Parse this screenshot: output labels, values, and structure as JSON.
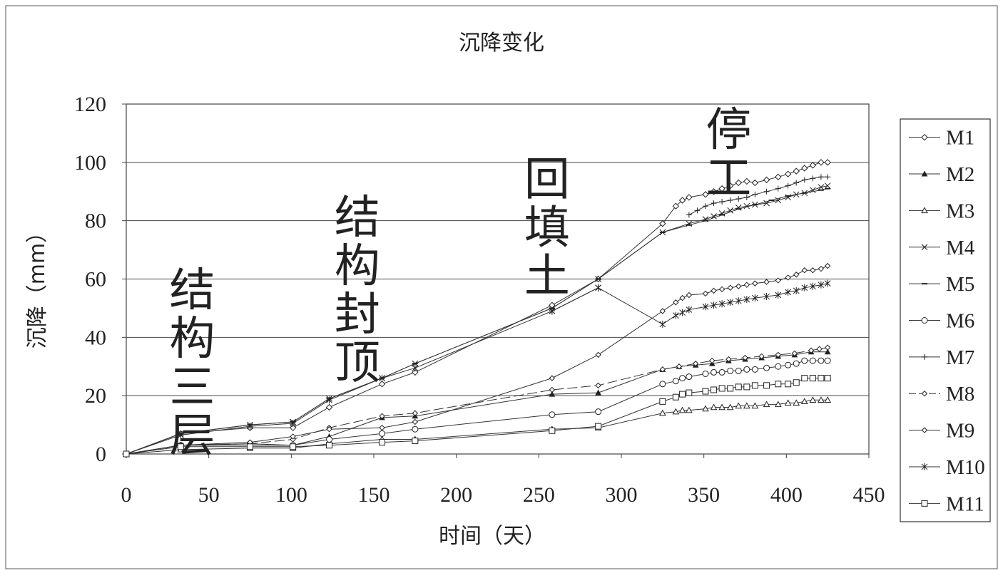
{
  "chart_data": {
    "type": "line",
    "title": "沉降变化",
    "xlabel": "时间（天）",
    "ylabel": "沉降（mm）",
    "xlim": [
      0,
      450
    ],
    "ylim": [
      0,
      120
    ],
    "xticks": [
      "0",
      "50",
      "100",
      "150",
      "200",
      "250",
      "300",
      "350",
      "400",
      "450"
    ],
    "yticks": [
      "0",
      "20",
      "40",
      "60",
      "80",
      "100",
      "120"
    ],
    "grid": "horizontal",
    "legend_position": "right",
    "annotations": [
      {
        "text": "结构三层",
        "at": [
          40,
          65
        ]
      },
      {
        "text": "结构封顶",
        "at": [
          140,
          90
        ]
      },
      {
        "text": "回填土",
        "at": [
          255,
          103
        ]
      },
      {
        "text": "停工",
        "at": [
          365,
          120
        ]
      }
    ],
    "series": [
      {
        "name": "M1",
        "marker": "diamond",
        "dash": "solid",
        "x": [
          0,
          33,
          75,
          101,
          123,
          155,
          175,
          258,
          286,
          325,
          333,
          337,
          341,
          351,
          356,
          361,
          366,
          371,
          376,
          381,
          388,
          395,
          401,
          406,
          411,
          416,
          421,
          425
        ],
        "y": [
          0,
          7,
          9,
          9,
          16,
          24,
          28,
          51,
          60,
          79,
          85,
          87,
          88,
          89,
          90,
          91,
          92,
          93,
          93.5,
          93,
          94,
          95,
          96,
          97,
          98,
          99,
          100,
          100
        ]
      },
      {
        "name": "M2",
        "marker": "triangle-filled",
        "dash": "solid",
        "x": [
          0,
          33,
          75,
          101,
          123,
          155,
          175,
          258,
          286,
          325,
          335,
          345,
          355,
          365,
          375,
          385,
          395,
          405,
          415,
          425
        ],
        "y": [
          0,
          3,
          3,
          3,
          6,
          12.5,
          13,
          20.5,
          21,
          29,
          30,
          30.5,
          31,
          32,
          32.5,
          33,
          33.5,
          34,
          35,
          35
        ]
      },
      {
        "name": "M3",
        "marker": "triangle",
        "dash": "solid",
        "x": [
          0,
          33,
          75,
          101,
          123,
          155,
          175,
          258,
          286,
          325,
          333,
          337,
          341,
          351,
          356,
          361,
          366,
          371,
          376,
          381,
          388,
          395,
          401,
          406,
          411,
          416,
          421,
          425
        ],
        "y": [
          0,
          1.5,
          2,
          2,
          3.5,
          5,
          5,
          8.5,
          9,
          14,
          14.5,
          15,
          15,
          15.5,
          16,
          16,
          16,
          16.5,
          16.5,
          16.5,
          17,
          17,
          17.5,
          17.5,
          18,
          18.5,
          18.5,
          18.5
        ]
      },
      {
        "name": "M4",
        "marker": "x",
        "dash": "solid",
        "x": [
          0,
          33,
          75,
          101,
          123,
          155,
          175,
          258,
          286,
          325,
          341,
          351,
          356,
          361,
          366,
          371,
          376,
          381,
          388,
          395,
          401,
          406,
          411,
          416,
          421,
          425
        ],
        "y": [
          0,
          7,
          10,
          11,
          19,
          26,
          31,
          50,
          60,
          76,
          79,
          80.5,
          81.5,
          82.5,
          83.5,
          84.5,
          85,
          85.5,
          86,
          87,
          88,
          89,
          89.5,
          90.5,
          91.5,
          92
        ]
      },
      {
        "name": "M5",
        "marker": "dash",
        "dash": "solid",
        "x": [
          0,
          33,
          75,
          101,
          123,
          155,
          175,
          258,
          286,
          325,
          341,
          351,
          361,
          371,
          381,
          391,
          401,
          411,
          421,
          425
        ],
        "y": [
          0,
          7,
          10,
          11,
          19,
          26,
          31,
          50,
          60,
          76,
          78.5,
          80,
          82,
          84,
          85.5,
          87,
          88.5,
          89.5,
          90.5,
          91
        ]
      },
      {
        "name": "M6",
        "marker": "circle",
        "dash": "solid",
        "x": [
          0,
          33,
          75,
          101,
          123,
          155,
          175,
          258,
          286,
          325,
          333,
          337,
          341,
          351,
          356,
          361,
          366,
          371,
          376,
          381,
          388,
          395,
          401,
          406,
          411,
          416,
          421,
          425
        ],
        "y": [
          0,
          3,
          3.5,
          3,
          5,
          7,
          8.5,
          13.5,
          14.5,
          24,
          25,
          26,
          26.5,
          27.5,
          28,
          28,
          28.5,
          28.5,
          29,
          29,
          29.5,
          30,
          30.5,
          31,
          32,
          32,
          32,
          32
        ]
      },
      {
        "name": "M7",
        "marker": "plus",
        "dash": "solid",
        "x": [
          341,
          346,
          351,
          356,
          361,
          366,
          371,
          376,
          381,
          388,
          395,
          401,
          406,
          411,
          416,
          421,
          425
        ],
        "y": [
          82,
          83.5,
          85,
          86,
          86.5,
          87,
          87.5,
          88,
          89,
          90,
          91,
          92,
          93,
          94,
          94.5,
          95,
          95
        ]
      },
      {
        "name": "M8",
        "marker": "diamond-small",
        "dash": "dashed",
        "x": [
          0,
          33,
          75,
          101,
          123,
          155,
          175,
          258,
          286,
          325,
          335,
          345,
          355,
          365,
          375,
          385,
          395,
          405,
          415,
          420,
          425
        ],
        "y": [
          0,
          3,
          3.5,
          5,
          9,
          13,
          14,
          22,
          23.5,
          29,
          30,
          31,
          32,
          32.5,
          33,
          33.5,
          34,
          34.5,
          35.5,
          36,
          36.5
        ]
      },
      {
        "name": "M9",
        "marker": "diamond-small",
        "dash": "solid",
        "x": [
          0,
          33,
          75,
          101,
          123,
          155,
          175,
          258,
          286,
          325,
          333,
          337,
          341,
          351,
          356,
          361,
          366,
          371,
          376,
          381,
          388,
          395,
          401,
          406,
          411,
          416,
          421,
          425
        ],
        "y": [
          0,
          3,
          4,
          6,
          8.5,
          9,
          11,
          26,
          34,
          49,
          52,
          53.5,
          54.5,
          55,
          56,
          56.5,
          57,
          57.5,
          58,
          58.5,
          59,
          59.5,
          60.5,
          61.5,
          63,
          63,
          63.5,
          64.5
        ]
      },
      {
        "name": "M10",
        "marker": "asterisk",
        "dash": "solid",
        "x": [
          0,
          33,
          75,
          101,
          123,
          155,
          175,
          258,
          286,
          325,
          333,
          337,
          341,
          351,
          356,
          361,
          366,
          371,
          376,
          381,
          388,
          395,
          401,
          406,
          411,
          416,
          421,
          425
        ],
        "y": [
          0,
          6.5,
          9.5,
          10.5,
          18.5,
          26,
          29.5,
          49,
          57,
          44.5,
          47.5,
          48.5,
          49.5,
          50.5,
          51,
          51.5,
          52,
          52.5,
          53,
          53.5,
          54,
          54.5,
          55.5,
          56,
          57,
          57.5,
          58,
          58.5
        ]
      },
      {
        "name": "M11",
        "marker": "square",
        "dash": "solid",
        "x": [
          0,
          33,
          75,
          101,
          123,
          155,
          175,
          258,
          286,
          325,
          333,
          337,
          341,
          351,
          356,
          361,
          366,
          371,
          376,
          381,
          388,
          395,
          401,
          406,
          411,
          416,
          421,
          425
        ],
        "y": [
          0,
          2.5,
          2.5,
          2.5,
          3,
          4,
          4.5,
          8,
          9.5,
          18,
          19.5,
          20.5,
          21,
          21.5,
          22,
          22.5,
          22.5,
          23,
          23,
          23.5,
          23.5,
          24,
          24,
          24.5,
          26,
          26,
          26,
          26
        ]
      }
    ],
    "extra_segments": [
      {
        "series": "M10",
        "marker": "asterisk",
        "x": [
          258,
          286
        ],
        "y": [
          49,
          57
        ]
      }
    ]
  }
}
